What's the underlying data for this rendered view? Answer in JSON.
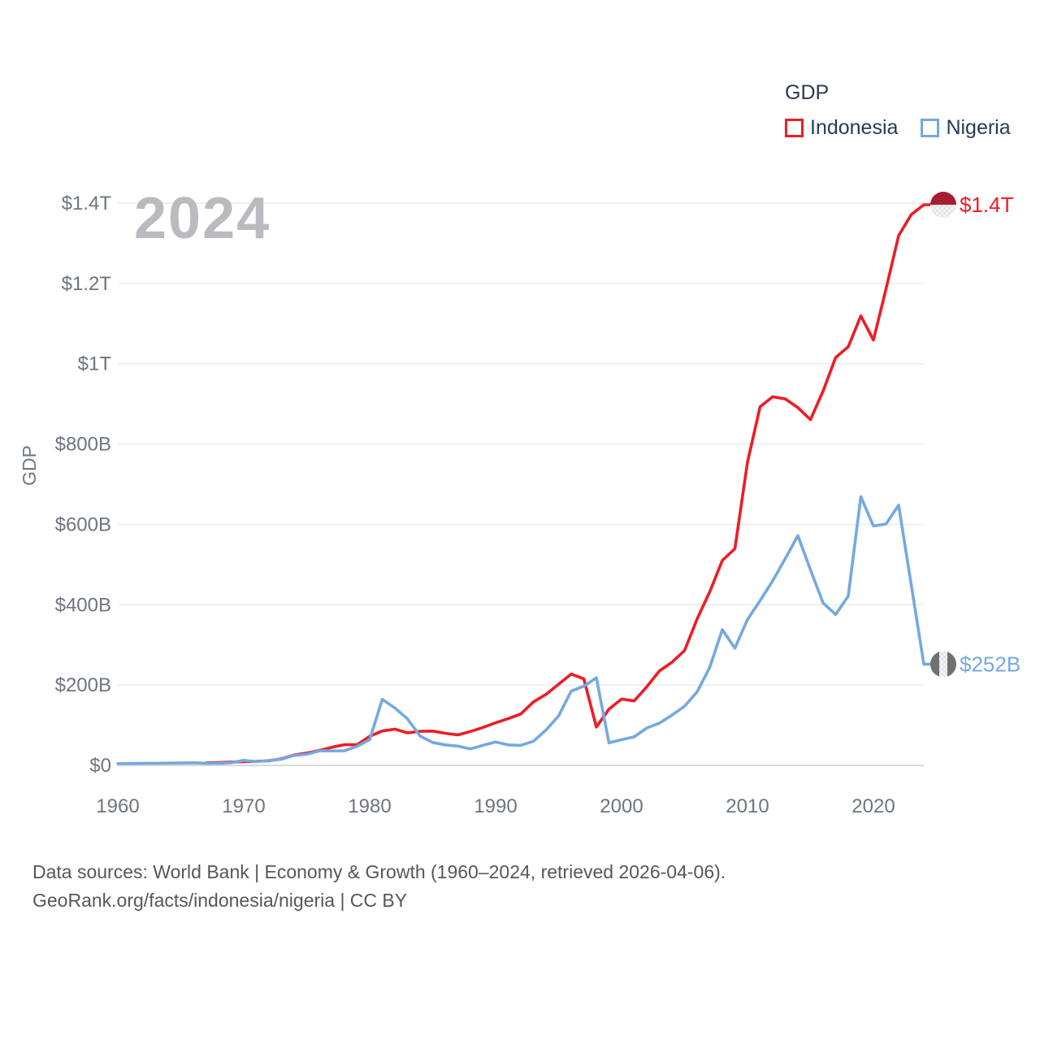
{
  "legend": {
    "title": "GDP",
    "series": [
      {
        "label": "Indonesia",
        "color": "#ee1c25"
      },
      {
        "label": "Nigeria",
        "color": "#74a9e0"
      }
    ]
  },
  "watermark": "2024",
  "chart_data": {
    "type": "line",
    "title": "GDP",
    "ylabel": "GDP",
    "xlim": [
      1960,
      2024
    ],
    "ylim": [
      0,
      1400
    ],
    "grid": "horizontal",
    "legend_position": "top-right",
    "x_ticks": [
      "1960",
      "1970",
      "1980",
      "1990",
      "2000",
      "2010",
      "2020"
    ],
    "x_tick_values": [
      1960,
      1970,
      1980,
      1990,
      2000,
      2010,
      2020
    ],
    "y_ticks": [
      {
        "value": 0,
        "label": "$0"
      },
      {
        "value": 200,
        "label": "$200B"
      },
      {
        "value": 400,
        "label": "$400B"
      },
      {
        "value": 600,
        "label": "$600B"
      },
      {
        "value": 800,
        "label": "$800B"
      },
      {
        "value": 1000,
        "label": "$1T"
      },
      {
        "value": 1200,
        "label": "$1.2T"
      },
      {
        "value": 1400,
        "label": "$1.4T"
      }
    ],
    "series": [
      {
        "name": "Indonesia",
        "color": "#ee1c25",
        "end_label": "$1.4T",
        "flag": "indonesia",
        "unit": "billion USD",
        "points": [
          [
            1967,
            6.0
          ],
          [
            1968,
            7.1
          ],
          [
            1969,
            8.3
          ],
          [
            1970,
            9.3
          ],
          [
            1971,
            9.9
          ],
          [
            1972,
            11.6
          ],
          [
            1973,
            16.3
          ],
          [
            1974,
            25.8
          ],
          [
            1975,
            30.5
          ],
          [
            1976,
            37.3
          ],
          [
            1977,
            45.1
          ],
          [
            1978,
            51.5
          ],
          [
            1979,
            51.4
          ],
          [
            1980,
            72.5
          ],
          [
            1981,
            85.5
          ],
          [
            1982,
            90.2
          ],
          [
            1983,
            81.0
          ],
          [
            1984,
            84.8
          ],
          [
            1985,
            85.3
          ],
          [
            1986,
            80.0
          ],
          [
            1987,
            75.9
          ],
          [
            1988,
            84.3
          ],
          [
            1989,
            94.5
          ],
          [
            1990,
            106.1
          ],
          [
            1991,
            116.6
          ],
          [
            1992,
            128.0
          ],
          [
            1993,
            158.0
          ],
          [
            1994,
            176.9
          ],
          [
            1995,
            202.1
          ],
          [
            1996,
            227.4
          ],
          [
            1997,
            215.7
          ],
          [
            1998,
            95.4
          ],
          [
            1999,
            140.0
          ],
          [
            2000,
            165.0
          ],
          [
            2001,
            160.4
          ],
          [
            2002,
            195.7
          ],
          [
            2003,
            234.8
          ],
          [
            2004,
            256.8
          ],
          [
            2005,
            285.9
          ],
          [
            2006,
            364.6
          ],
          [
            2007,
            432.2
          ],
          [
            2008,
            510.2
          ],
          [
            2009,
            539.6
          ],
          [
            2010,
            755.1
          ],
          [
            2011,
            893.0
          ],
          [
            2012,
            917.9
          ],
          [
            2013,
            912.5
          ],
          [
            2014,
            890.8
          ],
          [
            2015,
            860.9
          ],
          [
            2016,
            931.9
          ],
          [
            2017,
            1015.6
          ],
          [
            2018,
            1042.3
          ],
          [
            2019,
            1119.1
          ],
          [
            2020,
            1059.1
          ],
          [
            2021,
            1186.5
          ],
          [
            2022,
            1319.1
          ],
          [
            2023,
            1371.2
          ],
          [
            2024,
            1396.0
          ]
        ]
      },
      {
        "name": "Nigeria",
        "color": "#74a9e0",
        "end_label": "$252B",
        "flag": "nigeria",
        "unit": "billion USD",
        "points": [
          [
            1960,
            4.2
          ],
          [
            1961,
            4.7
          ],
          [
            1962,
            5.0
          ],
          [
            1963,
            5.3
          ],
          [
            1964,
            5.6
          ],
          [
            1965,
            5.9
          ],
          [
            1966,
            6.4
          ],
          [
            1967,
            5.2
          ],
          [
            1968,
            5.2
          ],
          [
            1969,
            6.7
          ],
          [
            1970,
            12.5
          ],
          [
            1971,
            9.2
          ],
          [
            1972,
            12.2
          ],
          [
            1973,
            15.3
          ],
          [
            1974,
            24.8
          ],
          [
            1975,
            27.8
          ],
          [
            1976,
            36.3
          ],
          [
            1977,
            36.0
          ],
          [
            1978,
            36.5
          ],
          [
            1979,
            47.3
          ],
          [
            1980,
            64.2
          ],
          [
            1981,
            164.5
          ],
          [
            1982,
            143.0
          ],
          [
            1983,
            116.0
          ],
          [
            1984,
            73.0
          ],
          [
            1985,
            57.0
          ],
          [
            1986,
            51.0
          ],
          [
            1987,
            48.0
          ],
          [
            1988,
            41.0
          ],
          [
            1989,
            50.0
          ],
          [
            1990,
            58.0
          ],
          [
            1991,
            51.0
          ],
          [
            1992,
            50.0
          ],
          [
            1993,
            60.0
          ],
          [
            1994,
            88.0
          ],
          [
            1995,
            123.0
          ],
          [
            1996,
            185.0
          ],
          [
            1997,
            197.0
          ],
          [
            1998,
            218.0
          ],
          [
            1999,
            56.0
          ],
          [
            2000,
            64.0
          ],
          [
            2001,
            71.0
          ],
          [
            2002,
            93.0
          ],
          [
            2003,
            105.0
          ],
          [
            2004,
            125.0
          ],
          [
            2005,
            147.0
          ],
          [
            2006,
            183.0
          ],
          [
            2007,
            244.0
          ],
          [
            2008,
            338.0
          ],
          [
            2009,
            291.9
          ],
          [
            2010,
            363.4
          ],
          [
            2011,
            410.3
          ],
          [
            2012,
            459.4
          ],
          [
            2013,
            514.9
          ],
          [
            2014,
            572.0
          ],
          [
            2015,
            486.8
          ],
          [
            2016,
            404.7
          ],
          [
            2017,
            375.7
          ],
          [
            2018,
            421.7
          ],
          [
            2019,
            669.0
          ],
          [
            2020,
            596.0
          ],
          [
            2021,
            601.0
          ],
          [
            2022,
            648.0
          ],
          [
            2023,
            450.0
          ],
          [
            2024,
            252.0
          ]
        ]
      }
    ]
  },
  "footer": {
    "line1": "Data sources: World Bank | Economy & Growth (1960–2024, retrieved 2026-04-06).",
    "line2": "GeoRank.org/facts/indonesia/nigeria | CC BY"
  }
}
